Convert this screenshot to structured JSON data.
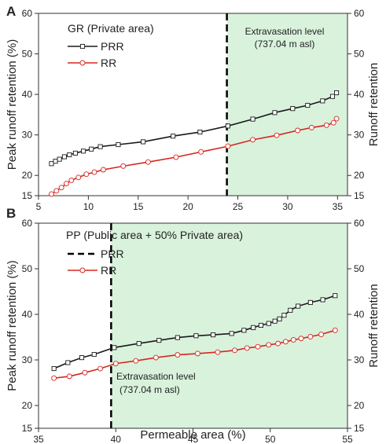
{
  "colors": {
    "prr": "#1a1a1a",
    "rr": "#d7261e",
    "shade": "#d9f2dc",
    "marker_fill": "#ffffff"
  },
  "chart_data": [
    {
      "type": "line",
      "panel": "A",
      "legend_title": "GR (Private area)",
      "annotation": [
        "Extravasation level",
        "(737.04 m asl)"
      ],
      "xlabel": "",
      "ylabel_left": "Peak runoff retention (%)",
      "ylabel_right": "Runoff retention",
      "xlim": [
        5,
        36
      ],
      "ylim": [
        15,
        60
      ],
      "xticks": [
        5,
        10,
        15,
        20,
        25,
        30,
        35
      ],
      "yticks": [
        15,
        20,
        30,
        40,
        50,
        60
      ],
      "threshold_x": 23.9,
      "shade_from_x": 23.9,
      "series": [
        {
          "name": "PRR",
          "marker": "square",
          "x": [
            6.3,
            6.7,
            7.1,
            7.6,
            8.1,
            8.7,
            9.5,
            10.3,
            11.2,
            13.0,
            15.5,
            18.5,
            21.2,
            24.0,
            26.5,
            28.7,
            30.5,
            32.0,
            33.5,
            34.5,
            34.9
          ],
          "y": [
            22.9,
            23.5,
            24.0,
            24.6,
            25.1,
            25.5,
            26.0,
            26.5,
            27.1,
            27.6,
            28.3,
            29.7,
            30.7,
            32.2,
            33.9,
            35.5,
            36.5,
            37.3,
            38.4,
            39.5,
            40.4
          ]
        },
        {
          "name": "RR",
          "marker": "circle",
          "x": [
            6.3,
            6.8,
            7.3,
            7.8,
            8.3,
            9.0,
            9.8,
            10.6,
            11.5,
            13.5,
            16.0,
            18.8,
            21.3,
            24.0,
            26.5,
            28.9,
            31.0,
            32.4,
            33.9,
            34.6,
            34.9
          ],
          "y": [
            15.4,
            16.2,
            17.0,
            18.0,
            18.8,
            19.5,
            20.3,
            20.8,
            21.4,
            22.3,
            23.3,
            24.5,
            25.8,
            27.2,
            28.8,
            29.9,
            31.1,
            31.8,
            32.4,
            33.0,
            34.0
          ]
        }
      ]
    },
    {
      "type": "line",
      "panel": "B",
      "legend_title": "PP (Public area + 50% Private area)",
      "annotation": [
        "Extravasation level",
        "(737.04 m asl)"
      ],
      "xlabel": "Permeable area (%)",
      "ylabel_left": "Peak runoff retention (%)",
      "ylabel_right": "Runoff retention",
      "xlim": [
        35,
        55
      ],
      "ylim": [
        15,
        60
      ],
      "xticks": [
        35,
        40,
        45,
        50,
        55
      ],
      "yticks": [
        15,
        20,
        30,
        40,
        50,
        60
      ],
      "threshold_x": 39.7,
      "shade_from_x": 39.7,
      "series": [
        {
          "name": "PRR",
          "marker": "square",
          "x": [
            36.0,
            36.9,
            37.8,
            38.6,
            39.9,
            41.5,
            42.8,
            44.0,
            45.2,
            46.3,
            47.5,
            48.3,
            48.9,
            49.4,
            49.9,
            50.3,
            50.6,
            50.9,
            51.3,
            51.8,
            52.6,
            53.4,
            54.2
          ],
          "y": [
            28.1,
            29.4,
            30.5,
            31.2,
            32.7,
            33.6,
            34.3,
            34.9,
            35.3,
            35.5,
            35.8,
            36.5,
            37.1,
            37.6,
            38.0,
            38.5,
            39.0,
            39.8,
            40.9,
            41.8,
            42.6,
            43.2,
            44.1
          ]
        },
        {
          "name": "RR",
          "marker": "circle",
          "x": [
            36.0,
            37.0,
            38.0,
            39.0,
            40.0,
            41.3,
            42.6,
            44.0,
            45.3,
            46.6,
            47.7,
            48.5,
            49.2,
            49.9,
            50.5,
            51.0,
            51.5,
            52.0,
            52.6,
            53.3,
            54.2
          ],
          "y": [
            26.0,
            26.4,
            27.2,
            28.1,
            29.2,
            29.8,
            30.5,
            31.1,
            31.4,
            31.7,
            32.1,
            32.6,
            32.9,
            33.3,
            33.6,
            34.0,
            34.4,
            34.7,
            35.1,
            35.6,
            36.5
          ]
        }
      ]
    }
  ]
}
